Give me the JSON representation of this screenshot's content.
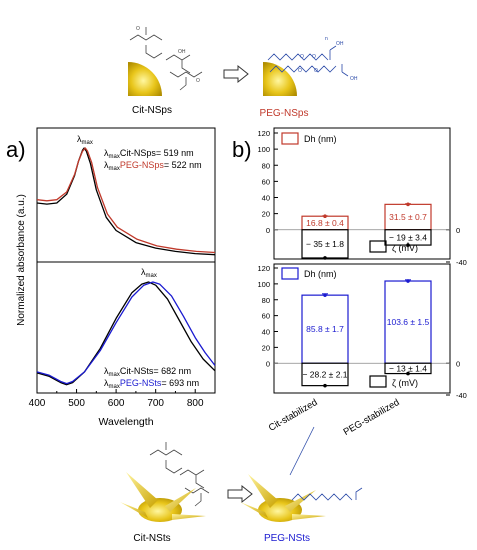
{
  "scheme_top": {
    "left_label": "Cit-NSps",
    "right_label": "PEG-NSps",
    "right_label_color": "#c0392b"
  },
  "scheme_bottom": {
    "left_label": "Cit-NSts",
    "right_label": "PEG-NSts",
    "right_label_color": "#1a1ad0"
  },
  "panel_a": {
    "letter": "a)",
    "top": {
      "peak_label": "λmax",
      "legend": [
        {
          "prefix": "λmax ",
          "name": "Cit-NSps",
          "suffix": "= 519 nm",
          "color": "#000000"
        },
        {
          "prefix": "λmax ",
          "name": "PEG-NSps",
          "suffix": "= 522 nm",
          "color": "#c0392b"
        }
      ]
    },
    "bottom": {
      "peak_label": "λmax",
      "legend": [
        {
          "prefix": "λmax ",
          "name": "Cit-NSts",
          "suffix": "= 682 nm",
          "color": "#000000"
        },
        {
          "prefix": "λmax ",
          "name": "PEG-NSts",
          "suffix": "= 693 nm",
          "color": "#1a1ad0"
        }
      ]
    }
  },
  "panel_b": {
    "letter": "b)",
    "top": {
      "legend_dh": "Dh (nm)",
      "legend_zeta": "ζ  (mV)",
      "dh_color": "#c0392b",
      "dh_labels": [
        "16.8 ± 0.4",
        "31.5 ± 0.7"
      ],
      "zeta_labels": [
        "− 35 ± 1.8",
        "− 19 ± 3.4"
      ]
    },
    "bottom": {
      "legend_dh": "Dh (nm)",
      "legend_zeta": "ζ  (mV)",
      "dh_color": "#1a1ad0",
      "dh_labels": [
        "85.8 ± 1.7",
        "103.6 ± 1.5"
      ],
      "zeta_labels": [
        "− 28.2 ± 2.1",
        "− 13 ± 1.4"
      ]
    }
  },
  "chart_data": [
    {
      "type": "line",
      "panel": "a-top",
      "xlabel": "Wavelength",
      "ylabel": "Normalized absorbance (a.u.)",
      "xlim": [
        400,
        850
      ],
      "xticks": [
        400,
        500,
        600,
        700,
        800
      ],
      "series": [
        {
          "name": "Cit-NSps",
          "color": "#000000",
          "peak": 519,
          "x": [
            400,
            425,
            450,
            475,
            495,
            505,
            515,
            519,
            525,
            535,
            550,
            575,
            600,
            650,
            700,
            750,
            800,
            850
          ],
          "y": [
            0.5,
            0.49,
            0.5,
            0.58,
            0.75,
            0.88,
            0.98,
            1.0,
            0.97,
            0.86,
            0.62,
            0.37,
            0.25,
            0.14,
            0.09,
            0.06,
            0.04,
            0.03
          ]
        },
        {
          "name": "PEG-NSps",
          "color": "#c0392b",
          "peak": 522,
          "x": [
            400,
            425,
            450,
            475,
            495,
            505,
            515,
            522,
            528,
            538,
            553,
            578,
            603,
            653,
            703,
            753,
            803,
            850
          ],
          "y": [
            0.53,
            0.52,
            0.53,
            0.6,
            0.76,
            0.88,
            0.97,
            1.0,
            0.97,
            0.87,
            0.64,
            0.4,
            0.28,
            0.17,
            0.11,
            0.08,
            0.06,
            0.05
          ]
        }
      ]
    },
    {
      "type": "line",
      "panel": "a-bottom",
      "xlabel": "Wavelength",
      "ylabel": "Normalized absorbance (a.u.)",
      "xlim": [
        400,
        850
      ],
      "xticks": [
        400,
        500,
        600,
        700,
        800
      ],
      "series": [
        {
          "name": "Cit-NSts",
          "color": "#000000",
          "peak": 682,
          "x": [
            400,
            430,
            460,
            475,
            490,
            520,
            560,
            600,
            640,
            665,
            682,
            700,
            730,
            760,
            790,
            820,
            850
          ],
          "y": [
            0.15,
            0.12,
            0.06,
            0.04,
            0.06,
            0.16,
            0.38,
            0.66,
            0.9,
            0.98,
            1.0,
            0.97,
            0.84,
            0.64,
            0.44,
            0.28,
            0.17
          ]
        },
        {
          "name": "PEG-NSts",
          "color": "#1a1ad0",
          "peak": 693,
          "x": [
            400,
            430,
            460,
            475,
            490,
            520,
            560,
            600,
            640,
            670,
            693,
            710,
            740,
            770,
            800,
            825,
            850
          ],
          "y": [
            0.16,
            0.13,
            0.07,
            0.05,
            0.07,
            0.16,
            0.36,
            0.62,
            0.86,
            0.97,
            1.0,
            0.98,
            0.87,
            0.68,
            0.48,
            0.34,
            0.22
          ]
        }
      ]
    },
    {
      "type": "bar",
      "panel": "b-top",
      "categories": [
        "Cit-stabilized",
        "PEG-stabilized"
      ],
      "left_ylim": [
        -40,
        120
      ],
      "left_yticks": [
        0,
        20,
        40,
        60,
        80,
        100,
        120
      ],
      "right_yticks": [
        0,
        -40
      ],
      "series": [
        {
          "name": "Dh (nm)",
          "color": "#c0392b",
          "values": [
            16.8,
            31.5
          ],
          "errors": [
            0.4,
            0.7
          ]
        },
        {
          "name": "ζ (mV)",
          "color": "#000000",
          "values": [
            -35,
            -19
          ],
          "errors": [
            1.8,
            3.4
          ]
        }
      ]
    },
    {
      "type": "bar",
      "panel": "b-bottom",
      "categories": [
        "Cit-stabilized",
        "PEG-stabilized"
      ],
      "left_ylim": [
        -40,
        120
      ],
      "left_yticks": [
        0,
        20,
        40,
        60,
        80,
        100,
        120
      ],
      "right_yticks": [
        0,
        -40
      ],
      "series": [
        {
          "name": "Dh (nm)",
          "color": "#1a1ad0",
          "values": [
            85.8,
            103.6
          ],
          "errors": [
            1.7,
            1.5
          ]
        },
        {
          "name": "ζ (mV)",
          "color": "#000000",
          "values": [
            -28.2,
            -13
          ],
          "errors": [
            2.1,
            1.4
          ]
        }
      ]
    }
  ]
}
